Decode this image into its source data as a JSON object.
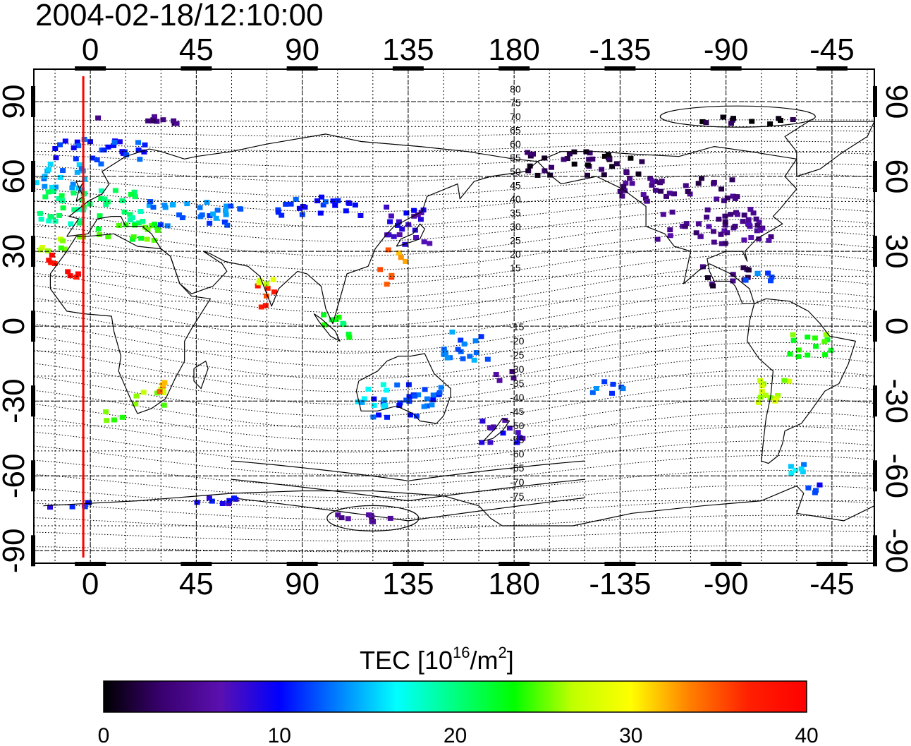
{
  "timestamp": "2004-02-18/12:10:00",
  "map": {
    "top_lon_labels": [
      "0",
      "45",
      "90",
      "135",
      "180",
      "-135",
      "-90",
      "-45"
    ],
    "bottom_lon_labels": [
      "0",
      "45",
      "90",
      "135",
      "180",
      "-135",
      "-90",
      "-45"
    ],
    "left_lat_labels": [
      "90",
      "60",
      "30",
      "0",
      "-30",
      "-60",
      "-90"
    ],
    "right_lat_labels": [
      "90",
      "60",
      "30",
      "0",
      "-30",
      "-60",
      "-90"
    ],
    "lon_ticks": [
      0,
      45,
      90,
      135,
      180,
      225,
      270,
      315
    ],
    "lat_ticks": [
      90,
      60,
      30,
      0,
      -30,
      -60,
      -90
    ],
    "lon_range": [
      -24,
      333
    ],
    "lat_range": [
      -95,
      103
    ],
    "meridian_marker_lon": -3,
    "mlat_labels_north": [
      "80",
      "75",
      "70",
      "65",
      "60",
      "55",
      "50",
      "45",
      "40",
      "35",
      "30",
      "25",
      "20",
      "15"
    ],
    "mlat_labels_south": [
      "-15",
      "-20",
      "-25",
      "-30",
      "-35",
      "-40",
      "-45",
      "-50",
      "-55",
      "-60",
      "-65",
      "-70",
      "-75"
    ],
    "colors": {
      "marker": "#ff0000",
      "coast": "#000000"
    }
  },
  "colorbar": {
    "title_main": "TEC  [10",
    "title_exp": "16",
    "title_unit": "/m",
    "title_unit_exp": "2",
    "title_close": "]",
    "tick_labels": [
      "0",
      "10",
      "20",
      "30",
      "40"
    ],
    "range": [
      0,
      40
    ],
    "stops": [
      "#000000",
      "#3a0070",
      "#5a10b0",
      "#0000ff",
      "#0080ff",
      "#00ffff",
      "#00ff80",
      "#00ff00",
      "#c0ff00",
      "#ffff00",
      "#ff8000",
      "#ff2000",
      "#ff0000"
    ]
  },
  "tec_patches": [
    {
      "lon": -20,
      "lat": 60,
      "w": 40,
      "h": 12,
      "tec": 14
    },
    {
      "lon": 5,
      "lat": 70,
      "w": 40,
      "h": 10,
      "tec": 11
    },
    {
      "lon": 0,
      "lat": 48,
      "w": 45,
      "h": 14,
      "tec": 20
    },
    {
      "lon": 15,
      "lat": 38,
      "w": 30,
      "h": 8,
      "tec": 24
    },
    {
      "lon": -12,
      "lat": 33,
      "w": 20,
      "h": 6,
      "tec": 26
    },
    {
      "lon": 45,
      "lat": 45,
      "w": 40,
      "h": 10,
      "tec": 13
    },
    {
      "lon": 95,
      "lat": 48,
      "w": 40,
      "h": 8,
      "tec": 11
    },
    {
      "lon": 20,
      "lat": 82,
      "w": 35,
      "h": 4,
      "tec": 4
    },
    {
      "lon": 135,
      "lat": 40,
      "w": 20,
      "h": 16,
      "tec": 8
    },
    {
      "lon": 130,
      "lat": 28,
      "w": 10,
      "h": 6,
      "tec": 33
    },
    {
      "lon": 125,
      "lat": 20,
      "w": 6,
      "h": 8,
      "tec": 36
    },
    {
      "lon": 75,
      "lat": 12,
      "w": 8,
      "h": 10,
      "tec": 37
    },
    {
      "lon": 75,
      "lat": 20,
      "w": 8,
      "h": 6,
      "tec": 28
    },
    {
      "lon": -18,
      "lat": 27,
      "w": 8,
      "h": 6,
      "tec": 39
    },
    {
      "lon": -8,
      "lat": 20,
      "w": 6,
      "h": 4,
      "tec": 38
    },
    {
      "lon": 105,
      "lat": 0,
      "w": 12,
      "h": 10,
      "tec": 22
    },
    {
      "lon": 160,
      "lat": -8,
      "w": 20,
      "h": 12,
      "tec": 13
    },
    {
      "lon": 135,
      "lat": -30,
      "w": 30,
      "h": 14,
      "tec": 12
    },
    {
      "lon": 175,
      "lat": -42,
      "w": 18,
      "h": 10,
      "tec": 8
    },
    {
      "lon": 120,
      "lat": -28,
      "w": 14,
      "h": 10,
      "tec": 16
    },
    {
      "lon": 25,
      "lat": -28,
      "w": 14,
      "h": 8,
      "tec": 26
    },
    {
      "lon": 30,
      "lat": -24,
      "w": 4,
      "h": 6,
      "tec": 33
    },
    {
      "lon": 210,
      "lat": 65,
      "w": 50,
      "h": 10,
      "tec": 2
    },
    {
      "lon": 265,
      "lat": 40,
      "w": 50,
      "h": 14,
      "tec": 5
    },
    {
      "lon": 250,
      "lat": 55,
      "w": 50,
      "h": 10,
      "tec": 4
    },
    {
      "lon": 270,
      "lat": 20,
      "w": 20,
      "h": 8,
      "tec": 3
    },
    {
      "lon": 285,
      "lat": 20,
      "w": 14,
      "h": 6,
      "tec": 13
    },
    {
      "lon": 290,
      "lat": -25,
      "w": 16,
      "h": 12,
      "tec": 27
    },
    {
      "lon": 305,
      "lat": -8,
      "w": 20,
      "h": 10,
      "tec": 24
    },
    {
      "lon": 300,
      "lat": -55,
      "w": 10,
      "h": 8,
      "tec": 15
    },
    {
      "lon": 305,
      "lat": -65,
      "w": 10,
      "h": 4,
      "tec": 11
    },
    {
      "lon": 280,
      "lat": 82,
      "w": 40,
      "h": 4,
      "tec": 1
    },
    {
      "lon": 220,
      "lat": -25,
      "w": 16,
      "h": 6,
      "tec": 12
    },
    {
      "lon": 175,
      "lat": -20,
      "w": 10,
      "h": 6,
      "tec": 5
    },
    {
      "lon": 115,
      "lat": -77,
      "w": 30,
      "h": 4,
      "tec": 5
    },
    {
      "lon": -15,
      "lat": -72,
      "w": 40,
      "h": 3,
      "tec": 10
    },
    {
      "lon": 45,
      "lat": -70,
      "w": 35,
      "h": 3,
      "tec": 9
    },
    {
      "lon": 10,
      "lat": -35,
      "w": 8,
      "h": 6,
      "tec": 24
    }
  ]
}
